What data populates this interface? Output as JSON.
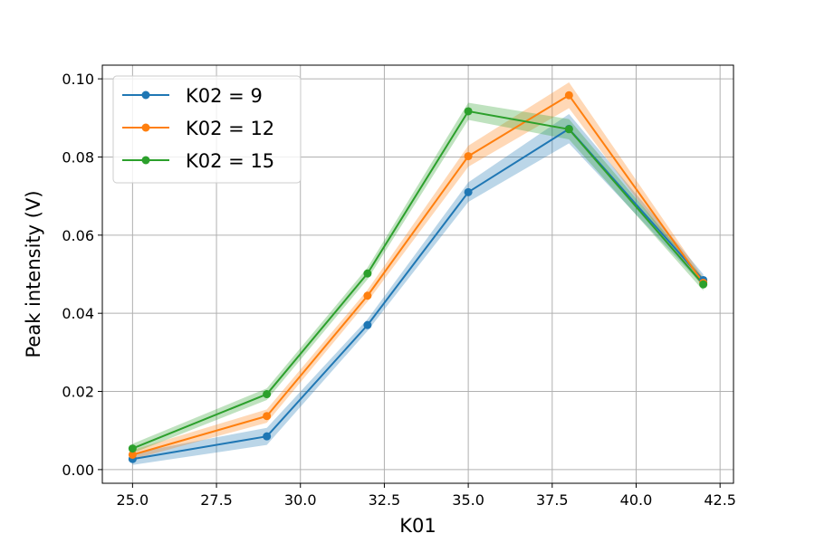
{
  "chart_data": {
    "type": "line",
    "title": "",
    "xlabel": "K01",
    "ylabel": "Peak intensity (V)",
    "xlim": [
      24.1,
      42.9
    ],
    "ylim": [
      -0.0035,
      0.1035
    ],
    "xticks": [
      25.0,
      27.5,
      30.0,
      32.5,
      35.0,
      37.5,
      40.0,
      42.5
    ],
    "xtick_labels": [
      "25.0",
      "27.5",
      "30.0",
      "32.5",
      "35.0",
      "37.5",
      "40.0",
      "42.5"
    ],
    "yticks": [
      0.0,
      0.02,
      0.04,
      0.06,
      0.08,
      0.1
    ],
    "ytick_labels": [
      "0.00",
      "0.02",
      "0.04",
      "0.06",
      "0.08",
      "0.10"
    ],
    "grid": true,
    "legend_position": "upper-left",
    "x": [
      25,
      29,
      32,
      35,
      38,
      42
    ],
    "series": [
      {
        "name": "K02 = 9",
        "color": "#1f77b4",
        "values": [
          0.0027,
          0.0085,
          0.037,
          0.071,
          0.0872,
          0.0485
        ],
        "band_lower": [
          0.0012,
          0.0063,
          0.0355,
          0.0685,
          0.0835,
          0.047
        ],
        "band_upper": [
          0.0042,
          0.0107,
          0.0385,
          0.0735,
          0.091,
          0.05
        ]
      },
      {
        "name": "K02 = 12",
        "color": "#ff7f0e",
        "values": [
          0.0038,
          0.0137,
          0.0445,
          0.0802,
          0.0958,
          0.0478
        ],
        "band_lower": [
          0.0026,
          0.012,
          0.043,
          0.0775,
          0.0925,
          0.0465
        ],
        "band_upper": [
          0.005,
          0.0154,
          0.046,
          0.0829,
          0.0991,
          0.0491
        ]
      },
      {
        "name": "K02 = 15",
        "color": "#2ca02c",
        "values": [
          0.0054,
          0.0193,
          0.0502,
          0.0917,
          0.0871,
          0.0474
        ],
        "band_lower": [
          0.0042,
          0.0178,
          0.0487,
          0.0895,
          0.0845,
          0.0458
        ],
        "band_upper": [
          0.0066,
          0.0208,
          0.0517,
          0.0939,
          0.0897,
          0.049
        ]
      }
    ]
  }
}
